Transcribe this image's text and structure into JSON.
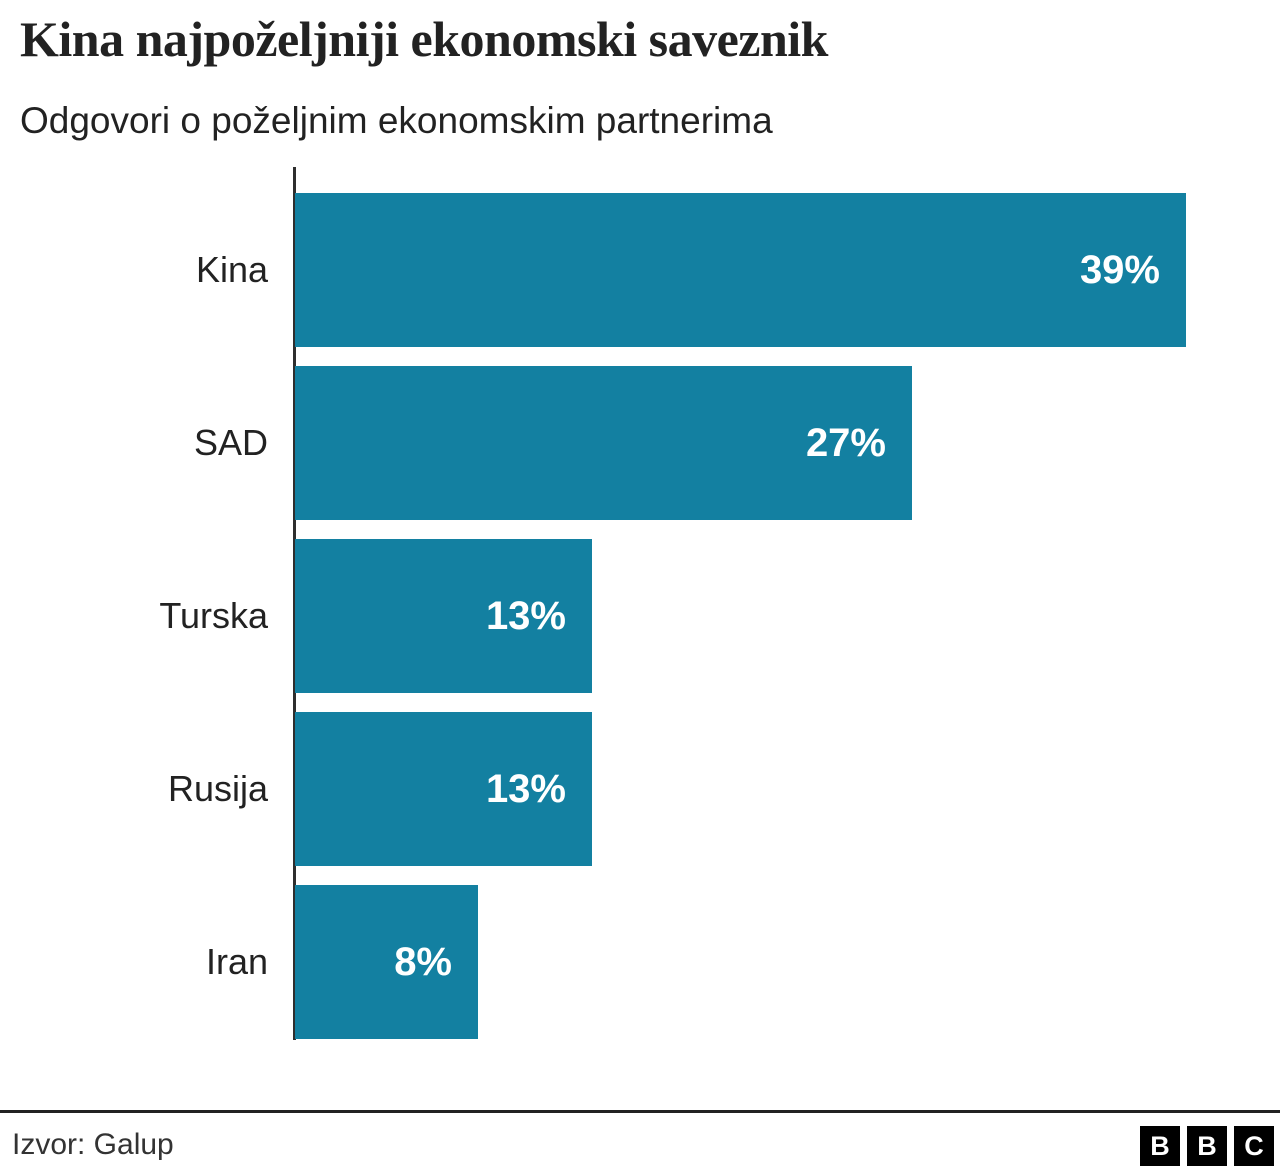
{
  "header": {
    "title": "Kina najpoželjniji ekonomski saveznik",
    "subtitle": "Odgovori o poželjnim ekonomskim partnerima"
  },
  "chart_data": {
    "type": "bar",
    "orientation": "horizontal",
    "title": "Kina najpoželjniji ekonomski saveznik",
    "subtitle": "Odgovori o poželjnim ekonomskim partnerima",
    "categories": [
      "Kina",
      "SAD",
      "Turska",
      "Rusija",
      "Iran"
    ],
    "values": [
      39,
      27,
      13,
      13,
      8
    ],
    "value_labels": [
      "39%",
      "27%",
      "13%",
      "13%",
      "8%"
    ],
    "xlim": [
      0,
      39
    ],
    "grid": false,
    "legend": false,
    "bar_color": "#1380A1",
    "value_label_color": "#ffffff",
    "axis_color": "#2e2e2e"
  },
  "footer": {
    "source": "Izvor: Galup",
    "logo": {
      "letters": [
        "B",
        "B",
        "C"
      ]
    }
  },
  "colors": {
    "bar": "#1380A1",
    "title_text": "#222222",
    "divider": "#222222",
    "logo_background": "#000000"
  }
}
